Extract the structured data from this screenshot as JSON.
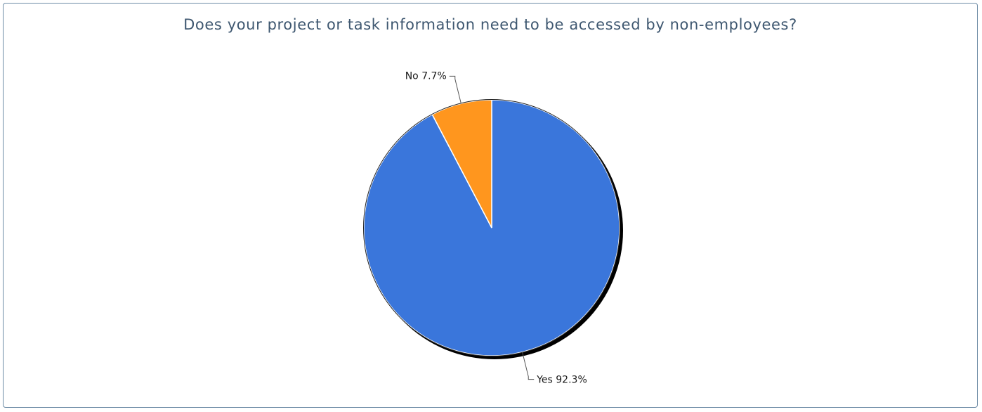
{
  "chart_data": {
    "type": "pie",
    "title": "Does your project or task information need to be accessed by non-employees?",
    "slices": [
      {
        "label": "Yes",
        "value": 92.3,
        "display": "92.3%",
        "color": "#3a76db"
      },
      {
        "label": "No",
        "value": 7.7,
        "display": "7.7%",
        "color": "#ff961e"
      }
    ],
    "start_angle_deg": 0,
    "direction": "clockwise",
    "legend": "none",
    "data_labels": "outside-with-leader-lines"
  }
}
